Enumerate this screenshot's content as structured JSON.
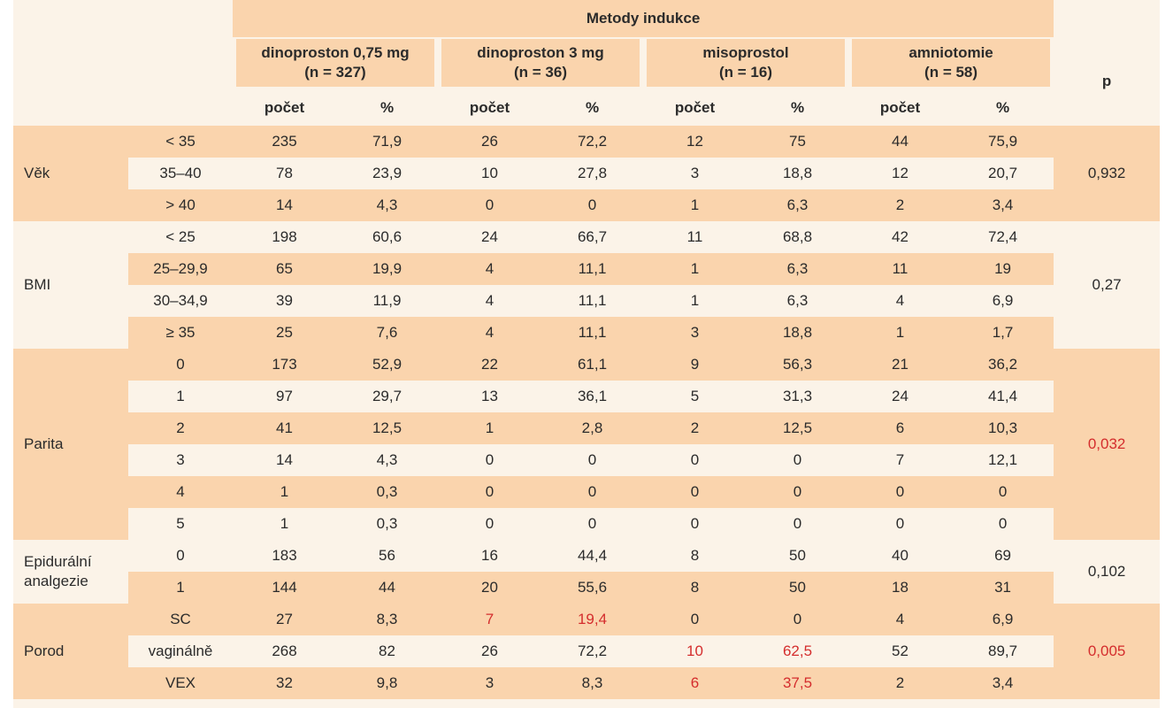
{
  "table": {
    "group_header": "Metody indukce",
    "methods": [
      {
        "name": "dinoproston 0,75 mg",
        "n": "(n = 327)"
      },
      {
        "name": "dinoproston 3 mg",
        "n": "(n = 36)"
      },
      {
        "name": "misoprostol",
        "n": "(n = 16)"
      },
      {
        "name": "amniotomie",
        "n": "(n = 58)"
      }
    ],
    "p_header": "p",
    "subheaders": [
      "počet",
      "%"
    ],
    "groups": [
      {
        "category": "Věk",
        "p": "0,932",
        "p_highlight": false,
        "shade": "orange",
        "rows": [
          {
            "sub": "< 35",
            "values": [
              "235",
              "71,9",
              "26",
              "72,2",
              "12",
              "75",
              "44",
              "75,9"
            ],
            "red": []
          },
          {
            "sub": "35–40",
            "values": [
              "78",
              "23,9",
              "10",
              "27,8",
              "3",
              "18,8",
              "12",
              "20,7"
            ],
            "red": []
          },
          {
            "sub": "> 40",
            "values": [
              "14",
              "4,3",
              "0",
              "0",
              "1",
              "6,3",
              "2",
              "3,4"
            ],
            "red": []
          }
        ]
      },
      {
        "category": "BMI",
        "p": "0,27",
        "p_highlight": false,
        "shade": "light",
        "rows": [
          {
            "sub": "< 25",
            "values": [
              "198",
              "60,6",
              "24",
              "66,7",
              "11",
              "68,8",
              "42",
              "72,4"
            ],
            "red": []
          },
          {
            "sub": "25–29,9",
            "values": [
              "65",
              "19,9",
              "4",
              "11,1",
              "1",
              "6,3",
              "11",
              "19"
            ],
            "red": []
          },
          {
            "sub": "30–34,9",
            "values": [
              "39",
              "11,9",
              "4",
              "11,1",
              "1",
              "6,3",
              "4",
              "6,9"
            ],
            "red": []
          },
          {
            "sub": "≥ 35",
            "values": [
              "25",
              "7,6",
              "4",
              "11,1",
              "3",
              "18,8",
              "1",
              "1,7"
            ],
            "red": []
          }
        ]
      },
      {
        "category": "Parita",
        "p": "0,032",
        "p_highlight": true,
        "shade": "orange",
        "rows": [
          {
            "sub": "0",
            "values": [
              "173",
              "52,9",
              "22",
              "61,1",
              "9",
              "56,3",
              "21",
              "36,2"
            ],
            "red": []
          },
          {
            "sub": "1",
            "values": [
              "97",
              "29,7",
              "13",
              "36,1",
              "5",
              "31,3",
              "24",
              "41,4"
            ],
            "red": []
          },
          {
            "sub": "2",
            "values": [
              "41",
              "12,5",
              "1",
              "2,8",
              "2",
              "12,5",
              "6",
              "10,3"
            ],
            "red": []
          },
          {
            "sub": "3",
            "values": [
              "14",
              "4,3",
              "0",
              "0",
              "0",
              "0",
              "7",
              "12,1"
            ],
            "red": []
          },
          {
            "sub": "4",
            "values": [
              "1",
              "0,3",
              "0",
              "0",
              "0",
              "0",
              "0",
              "0"
            ],
            "red": []
          },
          {
            "sub": "5",
            "values": [
              "1",
              "0,3",
              "0",
              "0",
              "0",
              "0",
              "0",
              "0"
            ],
            "red": []
          }
        ]
      },
      {
        "category": "Epidurální analgezie",
        "p": "0,102",
        "p_highlight": false,
        "shade": "light",
        "rows": [
          {
            "sub": "0",
            "values": [
              "183",
              "56",
              "16",
              "44,4",
              "8",
              "50",
              "40",
              "69"
            ],
            "red": []
          },
          {
            "sub": "1",
            "values": [
              "144",
              "44",
              "20",
              "55,6",
              "8",
              "50",
              "18",
              "31"
            ],
            "red": []
          }
        ]
      },
      {
        "category": "Porod",
        "p": "0,005",
        "p_highlight": true,
        "shade": "orange",
        "rows": [
          {
            "sub": "SC",
            "values": [
              "27",
              "8,3",
              "7",
              "19,4",
              "0",
              "0",
              "4",
              "6,9"
            ],
            "red": [
              2,
              3
            ]
          },
          {
            "sub": "vaginálně",
            "values": [
              "268",
              "82",
              "26",
              "72,2",
              "10",
              "62,5",
              "52",
              "89,7"
            ],
            "red": [
              4,
              5
            ]
          },
          {
            "sub": "VEX",
            "values": [
              "32",
              "9,8",
              "3",
              "8,3",
              "6",
              "37,5",
              "2",
              "3,4"
            ],
            "red": [
              4,
              5
            ]
          }
        ]
      }
    ]
  }
}
